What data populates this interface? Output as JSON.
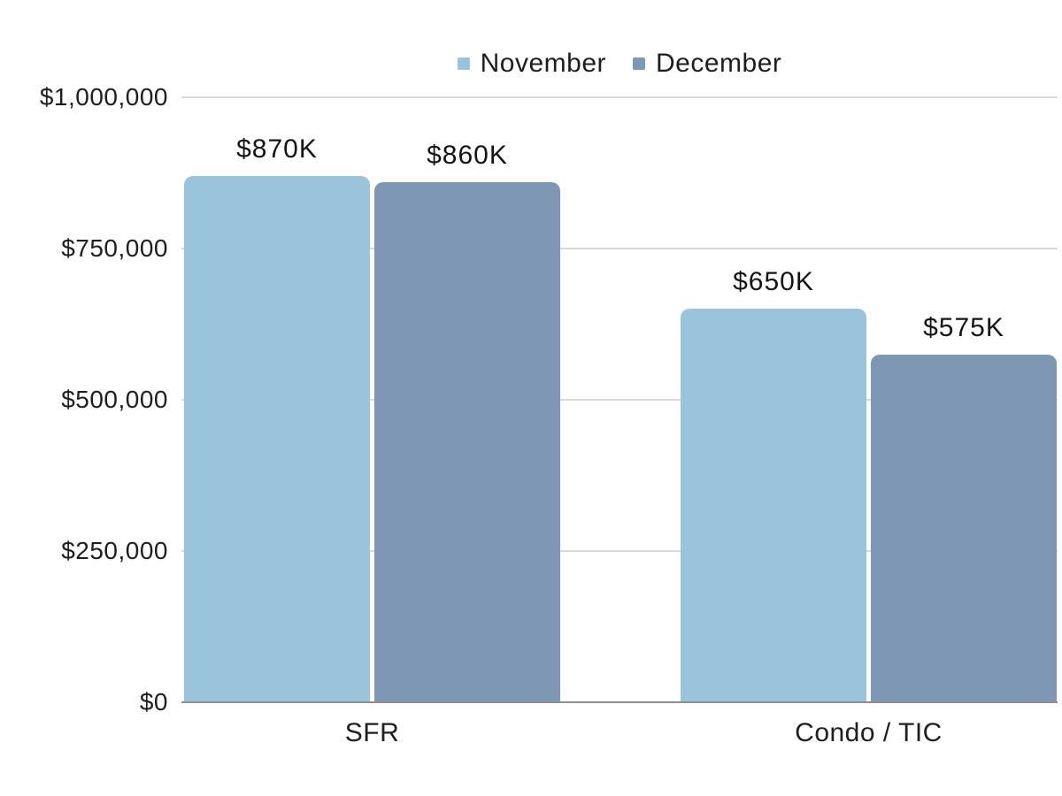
{
  "chart_data": {
    "type": "bar",
    "title": "",
    "xlabel": "",
    "ylabel": "",
    "categories": [
      "SFR",
      "Condo / TIC"
    ],
    "series": [
      {
        "name": "November",
        "color": "#9AC3DC",
        "values": [
          870000,
          650000
        ],
        "labels": [
          "$870K",
          "$650K"
        ]
      },
      {
        "name": "December",
        "color": "#7E97B4",
        "values": [
          860000,
          575000
        ],
        "labels": [
          "$860K",
          "$575K"
        ]
      }
    ],
    "ylim": [
      0,
      1000000
    ],
    "yticks": [
      {
        "value": 0,
        "label": "$0"
      },
      {
        "value": 250000,
        "label": "$250,000"
      },
      {
        "value": 500000,
        "label": "$500,000"
      },
      {
        "value": 750000,
        "label": "$750,000"
      },
      {
        "value": 1000000,
        "label": "$1,000,000"
      }
    ],
    "legend_position": "top-center",
    "grid": "horizontal"
  },
  "colors": {
    "gridline": "#D9D9D9",
    "axis_line": "#8F8F8F",
    "text": "#1E1E1E",
    "background": "#FFFFFF"
  }
}
